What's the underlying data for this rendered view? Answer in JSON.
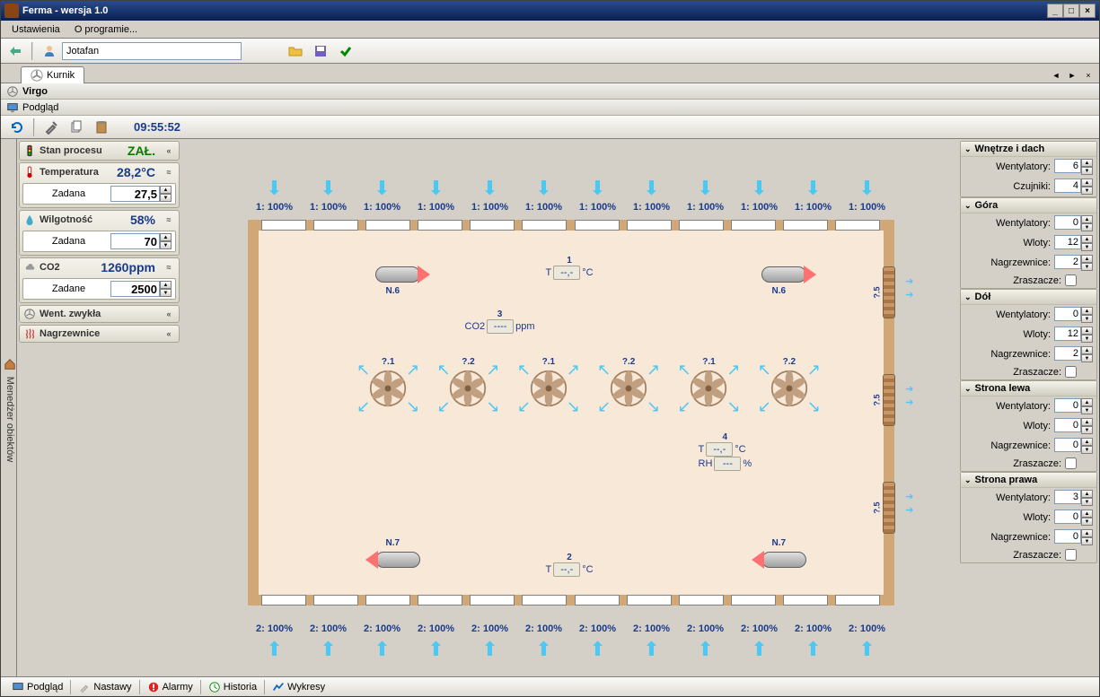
{
  "window": {
    "title": "Ferma - wersja 1.0"
  },
  "menu": {
    "settings": "Ustawienia",
    "about": "O programie..."
  },
  "user": {
    "name": "Jotafan"
  },
  "tab": {
    "name": "Kurnik"
  },
  "sub1": "Virgo",
  "sub2": "Podgląd",
  "time": "09:55:52",
  "siderail": "Menedżer obiektów",
  "status": {
    "process": {
      "label": "Stan procesu",
      "value": "ZAŁ."
    },
    "temp": {
      "label": "Temperatura",
      "value": "28,2°C",
      "set_label": "Zadana",
      "set_value": "27,5"
    },
    "hum": {
      "label": "Wilgotność",
      "value": "58%",
      "set_label": "Zadana",
      "set_value": "70"
    },
    "co2": {
      "label": "CO2",
      "value": "1260ppm",
      "set_label": "Zadane",
      "set_value": "2500"
    },
    "vent": {
      "label": "Went. zwykła"
    },
    "heat": {
      "label": "Nagrzewnice"
    }
  },
  "diagram": {
    "top_inlet_label": "1: 100%",
    "bot_inlet_label": "2: 100%",
    "top_inlet_count": 12,
    "bot_inlet_count": 12,
    "heaters": {
      "n6": "N.6",
      "n7": "N.7"
    },
    "fans": {
      "labels": [
        "?.1",
        "?.2",
        "?.1",
        "?.2",
        "?.1",
        "?.2"
      ],
      "count": 6
    },
    "sensors": {
      "s1": {
        "id": "1",
        "t": "--,-"
      },
      "s2": {
        "id": "2",
        "t": "--,-"
      },
      "s3": {
        "id": "3",
        "co2": "----"
      },
      "s4": {
        "id": "4",
        "t": "--,-",
        "rh": "---"
      }
    },
    "coil_label": "?.5"
  },
  "rpanel": {
    "s1": {
      "title": "Wnętrze i dach",
      "wentylatory": "6",
      "czujniki": "4"
    },
    "s2": {
      "title": "Góra",
      "wentylatory": "0",
      "wloty": "12",
      "nagrzewnice": "2",
      "zraszacze": false
    },
    "s3": {
      "title": "Dół",
      "wentylatory": "0",
      "wloty": "12",
      "nagrzewnice": "2",
      "zraszacze": false
    },
    "s4": {
      "title": "Strona lewa",
      "wentylatory": "0",
      "wloty": "0",
      "nagrzewnice": "0",
      "zraszacze": false
    },
    "s5": {
      "title": "Strona prawa",
      "wentylatory": "3",
      "wloty": "0",
      "nagrzewnice": "0",
      "zraszacze": false
    }
  },
  "labels": {
    "wentylatory": "Wentylatory:",
    "czujniki": "Czujniki:",
    "wloty": "Wloty:",
    "nagrzewnice": "Nagrzewnice:",
    "zraszacze": "Zraszacze:"
  },
  "statusbar": {
    "podglad": "Podgląd",
    "nastawy": "Nastawy",
    "alarmy": "Alarmy",
    "historia": "Historia",
    "wykresy": "Wykresy"
  },
  "colors": {
    "titlebar": "#1a3a8a",
    "bg": "#d4d0c8",
    "accent": "#4dc8f0",
    "floor": "#f8e8d8",
    "wall": "#d0a878"
  }
}
